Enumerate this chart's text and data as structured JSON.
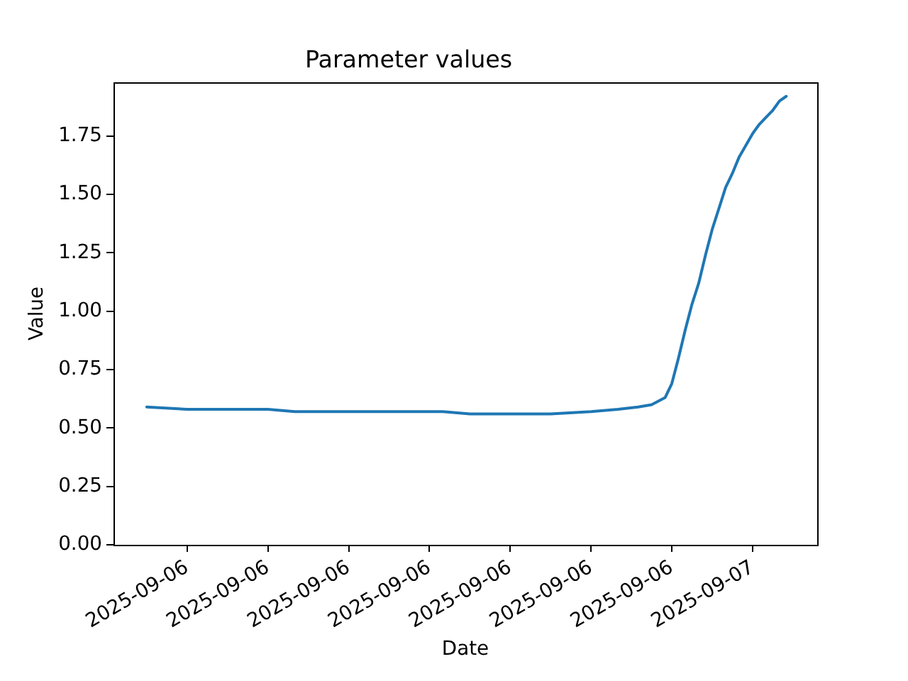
{
  "chart_data": {
    "type": "line",
    "title": "Parameter values",
    "xlabel": "Date",
    "ylabel": "Value",
    "color": "#1f77b4",
    "x": [
      "2025-09-06T01:30",
      "2025-09-06T03:00",
      "2025-09-06T04:30",
      "2025-09-06T06:00",
      "2025-09-06T07:00",
      "2025-09-06T09:00",
      "2025-09-06T10:30",
      "2025-09-06T12:00",
      "2025-09-06T12:30",
      "2025-09-06T13:30",
      "2025-09-06T15:00",
      "2025-09-06T16:30",
      "2025-09-06T18:00",
      "2025-09-06T19:00",
      "2025-09-06T19:45",
      "2025-09-06T20:15",
      "2025-09-06T20:45",
      "2025-09-06T21:00",
      "2025-09-06T21:15",
      "2025-09-06T21:30",
      "2025-09-06T21:45",
      "2025-09-06T22:00",
      "2025-09-06T22:15",
      "2025-09-06T22:30",
      "2025-09-06T22:45",
      "2025-09-06T23:00",
      "2025-09-06T23:15",
      "2025-09-06T23:30",
      "2025-09-06T23:45",
      "2025-09-07T00:00",
      "2025-09-07T00:15",
      "2025-09-07T00:30",
      "2025-09-07T00:45",
      "2025-09-07T01:00",
      "2025-09-07T01:15"
    ],
    "values": [
      0.59,
      0.58,
      0.58,
      0.58,
      0.57,
      0.57,
      0.57,
      0.57,
      0.57,
      0.56,
      0.56,
      0.56,
      0.57,
      0.58,
      0.59,
      0.6,
      0.63,
      0.69,
      0.8,
      0.92,
      1.03,
      1.12,
      1.24,
      1.35,
      1.44,
      1.53,
      1.59,
      1.66,
      1.71,
      1.76,
      1.8,
      1.83,
      1.86,
      1.9,
      1.92
    ],
    "xlim": [
      "2025-09-06T00:16",
      "2025-09-07T02:24"
    ],
    "xticks": [
      {
        "value": "2025-09-06T03:00",
        "label": "2025-09-06"
      },
      {
        "value": "2025-09-06T06:00",
        "label": "2025-09-06"
      },
      {
        "value": "2025-09-06T09:00",
        "label": "2025-09-06"
      },
      {
        "value": "2025-09-06T12:00",
        "label": "2025-09-06"
      },
      {
        "value": "2025-09-06T15:00",
        "label": "2025-09-06"
      },
      {
        "value": "2025-09-06T18:00",
        "label": "2025-09-06"
      },
      {
        "value": "2025-09-06T21:00",
        "label": "2025-09-06"
      },
      {
        "value": "2025-09-07T00:00",
        "label": "2025-09-07"
      }
    ],
    "ylim": [
      0,
      1.98
    ],
    "yticks": [
      {
        "value": 0,
        "label": "0.00"
      },
      {
        "value": 0.25,
        "label": "0.25"
      },
      {
        "value": 0.5,
        "label": "0.50"
      },
      {
        "value": 0.75,
        "label": "0.75"
      },
      {
        "value": 1,
        "label": "1.00"
      },
      {
        "value": 1.25,
        "label": "1.25"
      },
      {
        "value": 1.5,
        "label": "1.50"
      },
      {
        "value": 1.75,
        "label": "1.75"
      }
    ]
  }
}
